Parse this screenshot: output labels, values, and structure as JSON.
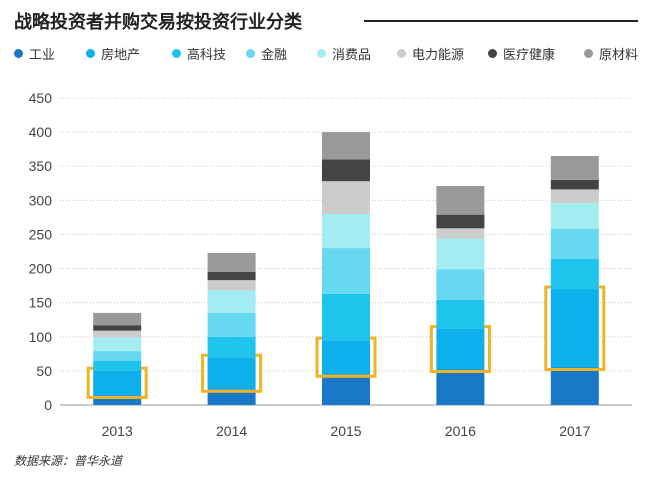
{
  "chart_data": {
    "type": "bar",
    "stacked": true,
    "title": "战略投资者并购交易按投资行业分类",
    "xlabel": "",
    "ylabel": "",
    "categories": [
      "2013",
      "2014",
      "2015",
      "2016",
      "2017"
    ],
    "ylim": [
      0,
      450
    ],
    "yticks": [
      0,
      50,
      100,
      150,
      200,
      250,
      300,
      350,
      400,
      450
    ],
    "grid": true,
    "legend_position": "top",
    "series": [
      {
        "name": "工业",
        "color": "#1a78c8",
        "values": [
          14,
          23,
          45,
          52,
          55
        ]
      },
      {
        "name": "房地产",
        "color": "#0eb0ec",
        "values": [
          37,
          47,
          50,
          60,
          115
        ]
      },
      {
        "name": "高科技",
        "color": "#1fc4ed",
        "values": [
          14,
          30,
          68,
          42,
          44
        ]
      },
      {
        "name": "金融",
        "color": "#66d8f0",
        "values": [
          14,
          35,
          67,
          45,
          44
        ]
      },
      {
        "name": "消费品",
        "color": "#a3ecf2",
        "values": [
          20,
          33,
          50,
          45,
          38
        ]
      },
      {
        "name": "电力能源",
        "color": "#cccccc",
        "values": [
          10,
          15,
          48,
          15,
          20
        ]
      },
      {
        "name": "医疗健康",
        "color": "#444444",
        "values": [
          8,
          12,
          32,
          20,
          14
        ]
      },
      {
        "name": "原材料",
        "color": "#999999",
        "values": [
          18,
          28,
          40,
          42,
          35
        ]
      }
    ],
    "highlight": {
      "series": "房地产",
      "color": "#f0b323"
    }
  },
  "source": "数据来源：普华永道"
}
